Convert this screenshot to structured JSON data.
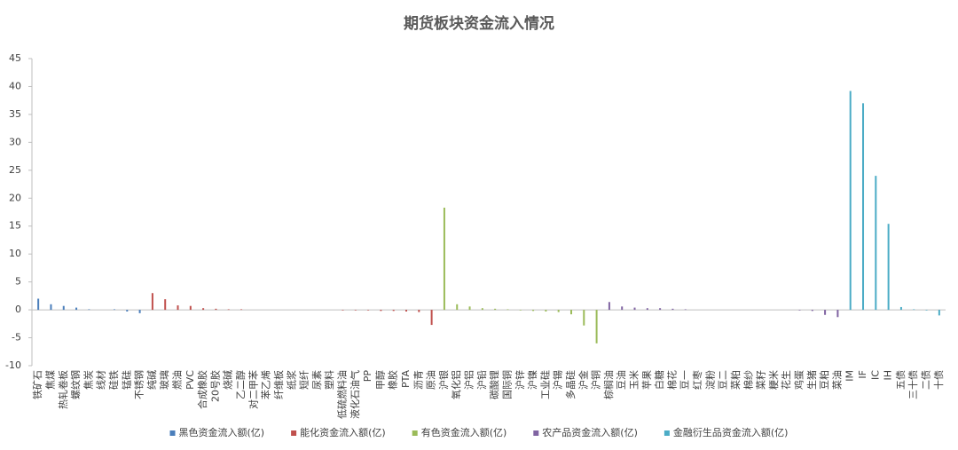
{
  "chart_data": {
    "type": "bar",
    "title": "期货板块资金流入情况",
    "categories": [
      "铁矿石",
      "焦煤",
      "热轧卷板",
      "螺纹钢",
      "焦炭",
      "线材",
      "硅铁",
      "锰硅",
      "不锈钢",
      "纯碱",
      "玻璃",
      "燃油",
      "PVC",
      "合成橡胶",
      "20号胶",
      "烧碱",
      "乙二醇",
      "对二甲苯",
      "苯乙烯",
      "纤维板",
      "纸浆",
      "短纤",
      "尿素",
      "塑料",
      "低硫燃料油",
      "液化石油气",
      "PP",
      "甲醇",
      "橡胶",
      "PTA",
      "沥青",
      "原油",
      "沪银",
      "氧化铝",
      "沪铝",
      "沪铅",
      "碳酸锂",
      "国际铜",
      "沪锌",
      "沪镍",
      "工业硅",
      "沪锡",
      "多晶硅",
      "沪金",
      "沪铜",
      "棕榈油",
      "豆油",
      "玉米",
      "苹果",
      "白糖",
      "棉花",
      "豆一",
      "红枣",
      "淀粉",
      "豆二",
      "菜粕",
      "棉纱",
      "菜籽",
      "粳米",
      "花生",
      "鸡蛋",
      "生猪",
      "豆粕",
      "菜油",
      "IM",
      "IF",
      "IC",
      "IH",
      "五债",
      "三十债",
      "二债",
      "十债"
    ],
    "series": [
      {
        "name": "黑色资金流入额(亿)",
        "color": "#4a7ebb",
        "values": [
          2.0,
          1.0,
          0.7,
          0.4,
          0.1,
          0,
          0.1,
          -0.3,
          -0.6,
          null,
          null,
          null,
          null,
          null,
          null,
          null,
          null,
          null,
          null,
          null,
          null,
          null,
          null,
          null,
          null,
          null,
          null,
          null,
          null,
          null,
          null,
          null,
          null,
          null,
          null,
          null,
          null,
          null,
          null,
          null,
          null,
          null,
          null,
          null,
          null,
          null,
          null,
          null,
          null,
          null,
          null,
          null,
          null,
          null,
          null,
          null,
          null,
          null,
          null,
          null,
          null,
          null,
          null,
          null,
          null,
          null,
          null,
          null,
          null,
          null,
          null,
          null
        ]
      },
      {
        "name": "能化资金流入额(亿)",
        "color": "#c0504d",
        "values": [
          null,
          null,
          null,
          null,
          null,
          null,
          null,
          null,
          null,
          3.0,
          1.9,
          0.8,
          0.7,
          0.3,
          0.2,
          0.1,
          0.1,
          0,
          0,
          0,
          0,
          0,
          0,
          0,
          -0.1,
          -0.1,
          -0.1,
          -0.2,
          -0.2,
          -0.3,
          -0.4,
          -2.7,
          null,
          null,
          null,
          null,
          null,
          null,
          null,
          null,
          null,
          null,
          null,
          null,
          null,
          null,
          null,
          null,
          null,
          null,
          null,
          null,
          null,
          null,
          null,
          null,
          null,
          null,
          null,
          null,
          null,
          null,
          null,
          null,
          null,
          null,
          null,
          null,
          null,
          null,
          null,
          null
        ]
      },
      {
        "name": "有色资金流入额(亿)",
        "color": "#9bbb59",
        "values": [
          null,
          null,
          null,
          null,
          null,
          null,
          null,
          null,
          null,
          null,
          null,
          null,
          null,
          null,
          null,
          null,
          null,
          null,
          null,
          null,
          null,
          null,
          null,
          null,
          null,
          null,
          null,
          null,
          null,
          null,
          null,
          null,
          18.3,
          1.0,
          0.6,
          0.3,
          0.2,
          0.1,
          -0.1,
          -0.2,
          -0.3,
          -0.4,
          -0.8,
          -2.8,
          -6.0,
          null,
          null,
          null,
          null,
          null,
          null,
          null,
          null,
          null,
          null,
          null,
          null,
          null,
          null,
          null,
          null,
          null,
          null,
          null,
          null,
          null,
          null,
          null,
          null,
          null,
          null,
          null
        ]
      },
      {
        "name": "农产品资金流入额(亿)",
        "color": "#8064a2",
        "values": [
          null,
          null,
          null,
          null,
          null,
          null,
          null,
          null,
          null,
          null,
          null,
          null,
          null,
          null,
          null,
          null,
          null,
          null,
          null,
          null,
          null,
          null,
          null,
          null,
          null,
          null,
          null,
          null,
          null,
          null,
          null,
          null,
          null,
          null,
          null,
          null,
          null,
          null,
          null,
          null,
          null,
          null,
          null,
          null,
          null,
          1.4,
          0.6,
          0.4,
          0.3,
          0.3,
          0.2,
          0.1,
          0,
          0,
          0,
          0,
          0,
          0,
          0,
          0,
          -0.1,
          -0.2,
          -0.9,
          -1.3,
          null,
          null,
          null,
          null,
          null,
          null,
          null,
          null
        ]
      },
      {
        "name": "金融衍生品资金流入额(亿)",
        "color": "#4bacc6",
        "values": [
          null,
          null,
          null,
          null,
          null,
          null,
          null,
          null,
          null,
          null,
          null,
          null,
          null,
          null,
          null,
          null,
          null,
          null,
          null,
          null,
          null,
          null,
          null,
          null,
          null,
          null,
          null,
          null,
          null,
          null,
          null,
          null,
          null,
          null,
          null,
          null,
          null,
          null,
          null,
          null,
          null,
          null,
          null,
          null,
          null,
          null,
          null,
          null,
          null,
          null,
          null,
          null,
          null,
          null,
          null,
          null,
          null,
          null,
          null,
          null,
          null,
          null,
          null,
          null,
          39.2,
          37.0,
          24.0,
          15.4,
          0.5,
          0.1,
          -0.1,
          -1.0
        ]
      }
    ],
    "ylim": [
      -10,
      45
    ],
    "yticks": [
      -10,
      -5,
      0,
      5,
      10,
      15,
      20,
      25,
      30,
      35,
      40,
      45
    ],
    "grid": false,
    "legend": "bottom"
  }
}
